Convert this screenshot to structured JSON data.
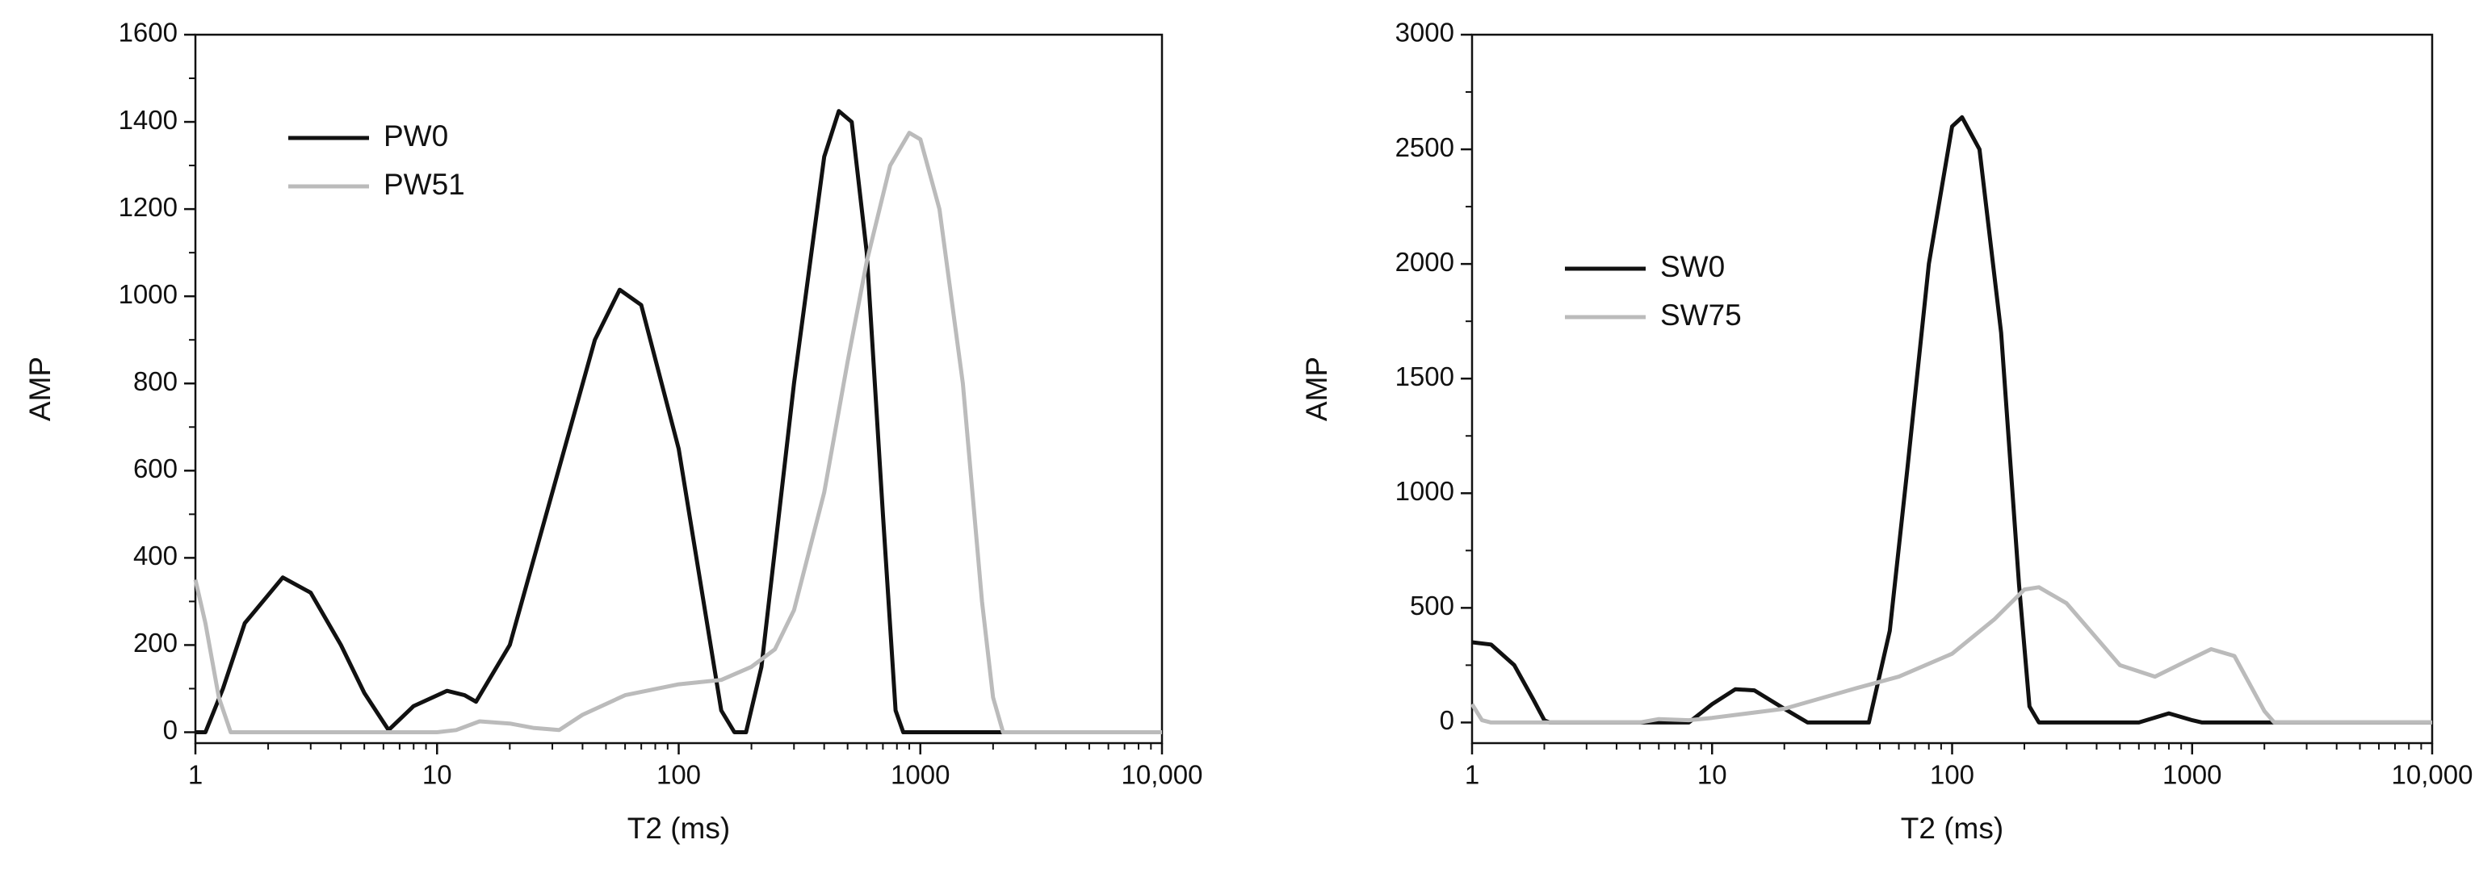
{
  "chart_data": [
    {
      "type": "line",
      "xlabel": "T2 (ms)",
      "ylabel": "AMP",
      "xscale": "log",
      "xlim": [
        1,
        10000
      ],
      "xticks": [
        1,
        10,
        100,
        1000,
        {
          "value": 10000,
          "label": "10,000"
        }
      ],
      "ylim": [
        -25,
        1600
      ],
      "yticks": [
        0,
        200,
        400,
        600,
        800,
        1000,
        1200,
        1400,
        1600
      ],
      "legend": "upper left",
      "series": [
        {
          "name": "PW0",
          "color": "#111111",
          "x": [
            1,
            1.1,
            1.3,
            1.6,
            2.3,
            3,
            4,
            5,
            6.3,
            8,
            11,
            13,
            14.5,
            20,
            30,
            45,
            57,
            70,
            100,
            150,
            170,
            190,
            220,
            300,
            400,
            460,
            520,
            600,
            700,
            790,
            850,
            10000
          ],
          "values": [
            0,
            0,
            100,
            250,
            355,
            320,
            200,
            90,
            5,
            60,
            95,
            85,
            70,
            200,
            550,
            900,
            1015,
            980,
            650,
            50,
            0,
            0,
            150,
            800,
            1320,
            1425,
            1400,
            1100,
            500,
            50,
            0,
            0
          ]
        },
        {
          "name": "PW51",
          "color": "#bbbbbb",
          "x": [
            1,
            1.1,
            1.25,
            1.4,
            10,
            12,
            15,
            20,
            25,
            32,
            40,
            60,
            100,
            150,
            200,
            250,
            300,
            400,
            500,
            600,
            750,
            900,
            1000,
            1200,
            1500,
            1800,
            2000,
            2200,
            10000
          ],
          "values": [
            350,
            250,
            80,
            0,
            0,
            5,
            25,
            20,
            10,
            5,
            40,
            85,
            110,
            120,
            150,
            190,
            280,
            550,
            850,
            1080,
            1300,
            1375,
            1360,
            1200,
            800,
            300,
            80,
            0,
            0
          ]
        }
      ]
    },
    {
      "type": "line",
      "xlabel": "T2 (ms)",
      "ylabel": "AMP",
      "xscale": "log",
      "xlim": [
        1,
        10000
      ],
      "xticks": [
        1,
        10,
        100,
        1000,
        {
          "value": 10000,
          "label": "10,000"
        }
      ],
      "ylim": [
        -90,
        3000
      ],
      "yticks": [
        0,
        500,
        1000,
        1500,
        2000,
        2500,
        3000
      ],
      "legend": "center left",
      "series": [
        {
          "name": "SW0",
          "color": "#111111",
          "x": [
            1,
            1.2,
            1.5,
            1.8,
            2,
            2.1,
            5,
            8,
            10,
            12.5,
            15,
            20,
            25,
            45,
            55,
            65,
            80,
            100,
            110,
            130,
            160,
            190,
            210,
            230,
            600,
            800,
            1000,
            1100,
            10000
          ],
          "values": [
            350,
            340,
            250,
            100,
            10,
            0,
            0,
            0,
            80,
            145,
            140,
            60,
            0,
            0,
            400,
            1100,
            2000,
            2600,
            2640,
            2500,
            1700,
            600,
            70,
            0,
            0,
            40,
            10,
            0,
            0
          ]
        },
        {
          "name": "SW75",
          "color": "#bbbbbb",
          "x": [
            1,
            1.1,
            1.2,
            5,
            6,
            8,
            10,
            20,
            40,
            60,
            100,
            150,
            200,
            230,
            300,
            500,
            700,
            1000,
            1200,
            1500,
            2000,
            2200,
            10000
          ],
          "values": [
            80,
            10,
            0,
            0,
            15,
            10,
            20,
            60,
            150,
            200,
            300,
            450,
            580,
            590,
            520,
            250,
            200,
            280,
            320,
            290,
            50,
            0,
            0
          ]
        }
      ]
    }
  ]
}
